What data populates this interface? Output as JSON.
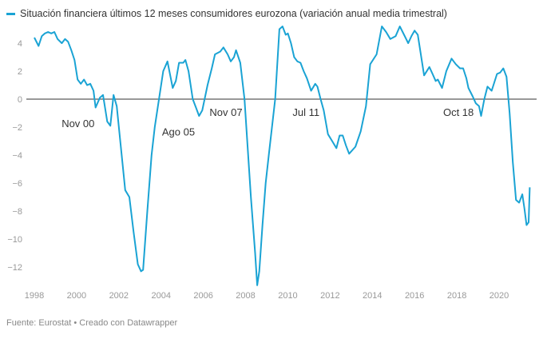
{
  "chart_data": {
    "type": "line",
    "title": "",
    "legend": [
      {
        "label": "Situación financiera últimos 12 meses consumidores eurozona (variación anual media trimestral)",
        "color": "#1aa3d4"
      }
    ],
    "legend_placement": "top-left",
    "xlabel": "",
    "ylabel": "",
    "xlim": [
      1997.5,
      2022.0
    ],
    "ylim": [
      -13.5,
      5.5
    ],
    "x_ticks": [
      "1998",
      "2000",
      "2002",
      "2004",
      "2006",
      "2008",
      "2010",
      "2012",
      "2014",
      "2016",
      "2018",
      "2020"
    ],
    "y_ticks": [
      "4",
      "2",
      "0",
      "−2",
      "−4",
      "−6",
      "−8",
      "−10",
      "−12"
    ],
    "y_tick_values": [
      4,
      2,
      0,
      -2,
      -4,
      -6,
      -8,
      -10,
      -12
    ],
    "grid": false,
    "reference_line": 0,
    "annotations": [
      {
        "text": "Nov 00",
        "x": 2000.85,
        "y": -1.2
      },
      {
        "text": "Ago 05",
        "x": 2005.6,
        "y": -1.8
      },
      {
        "text": "Nov 07",
        "x": 2007.85,
        "y": -0.4
      },
      {
        "text": "Jul 11",
        "x": 2011.5,
        "y": -0.4
      },
      {
        "text": "Oct 18",
        "x": 2018.8,
        "y": -0.4
      }
    ],
    "series": [
      {
        "name": "Situación financiera últimos 12 meses consumidores eurozona",
        "color": "#1aa3d4",
        "x": [
          1998.0,
          1998.2,
          1998.35,
          1998.5,
          1998.65,
          1998.8,
          1998.95,
          1999.1,
          1999.3,
          1999.45,
          1999.6,
          1999.75,
          1999.9,
          2000.05,
          2000.2,
          2000.35,
          2000.5,
          2000.65,
          2000.8,
          2000.9,
          2001.1,
          2001.25,
          2001.45,
          2001.6,
          2001.75,
          2001.9,
          2002.1,
          2002.3,
          2002.5,
          2002.7,
          2002.9,
          2003.05,
          2003.15,
          2003.35,
          2003.55,
          2003.7,
          2003.9,
          2004.1,
          2004.3,
          2004.55,
          2004.7,
          2004.85,
          2005.05,
          2005.15,
          2005.3,
          2005.5,
          2005.65,
          2005.8,
          2005.95,
          2006.2,
          2006.4,
          2006.55,
          2006.8,
          2006.95,
          2007.15,
          2007.3,
          2007.45,
          2007.55,
          2007.75,
          2007.95,
          2008.1,
          2008.25,
          2008.45,
          2008.55,
          2008.65,
          2008.8,
          2008.95,
          2009.1,
          2009.4,
          2009.6,
          2009.75,
          2009.9,
          2010.0,
          2010.15,
          2010.3,
          2010.45,
          2010.6,
          2010.75,
          2010.9,
          2011.1,
          2011.3,
          2011.4,
          2011.55,
          2011.7,
          2011.9,
          2012.1,
          2012.3,
          2012.45,
          2012.6,
          2012.75,
          2012.9,
          2013.2,
          2013.45,
          2013.7,
          2013.9,
          2014.2,
          2014.45,
          2014.65,
          2014.85,
          2015.1,
          2015.3,
          2015.5,
          2015.7,
          2015.85,
          2016.0,
          2016.15,
          2016.45,
          2016.7,
          2016.85,
          2017.0,
          2017.1,
          2017.3,
          2017.5,
          2017.75,
          2017.95,
          2018.15,
          2018.3,
          2018.45,
          2018.55,
          2018.75,
          2018.9,
          2019.05,
          2019.15,
          2019.3,
          2019.45,
          2019.65,
          2019.9,
          2020.05,
          2020.2,
          2020.35,
          2020.5,
          2020.65,
          2020.8,
          2020.95,
          2021.1,
          2021.2,
          2021.3,
          2021.4,
          2021.45
        ],
        "values": [
          4.4,
          3.8,
          4.5,
          4.7,
          4.8,
          4.7,
          4.8,
          4.3,
          4.0,
          4.3,
          4.1,
          3.5,
          2.8,
          1.4,
          1.1,
          1.4,
          1.0,
          1.1,
          0.6,
          -0.6,
          0.1,
          0.3,
          -1.6,
          -1.9,
          0.3,
          -0.5,
          -3.5,
          -6.5,
          -7.0,
          -9.5,
          -11.8,
          -12.3,
          -12.2,
          -8.0,
          -4.0,
          -2.0,
          0.0,
          2.0,
          2.7,
          0.8,
          1.3,
          2.6,
          2.6,
          2.8,
          2.0,
          0.0,
          -0.6,
          -1.2,
          -0.8,
          1.0,
          2.2,
          3.2,
          3.4,
          3.7,
          3.2,
          2.7,
          3.0,
          3.5,
          2.6,
          0.0,
          -3.5,
          -7.0,
          -11.0,
          -13.3,
          -12.3,
          -9.0,
          -6.0,
          -4.0,
          0.0,
          5.0,
          5.2,
          4.6,
          4.7,
          4.0,
          3.0,
          2.7,
          2.6,
          2.0,
          1.5,
          0.6,
          1.1,
          0.9,
          0.0,
          -0.8,
          -2.5,
          -3.0,
          -3.5,
          -2.6,
          -2.6,
          -3.3,
          -3.9,
          -3.4,
          -2.3,
          -0.5,
          2.5,
          3.2,
          5.2,
          4.8,
          4.3,
          4.5,
          5.2,
          4.6,
          4.0,
          4.5,
          4.9,
          4.6,
          1.7,
          2.3,
          1.8,
          1.3,
          1.4,
          0.8,
          2.0,
          2.9,
          2.5,
          2.2,
          2.2,
          1.5,
          0.8,
          0.2,
          -0.3,
          -0.5,
          -1.2,
          0.0,
          0.9,
          0.6,
          1.8,
          1.9,
          2.2,
          1.6,
          -1.0,
          -4.5,
          -7.2,
          -7.4,
          -6.8,
          -7.8,
          -9.0,
          -8.8,
          -6.3
        ]
      }
    ]
  },
  "source": "Fuente: Eurostat • Creado con Datawrapper"
}
